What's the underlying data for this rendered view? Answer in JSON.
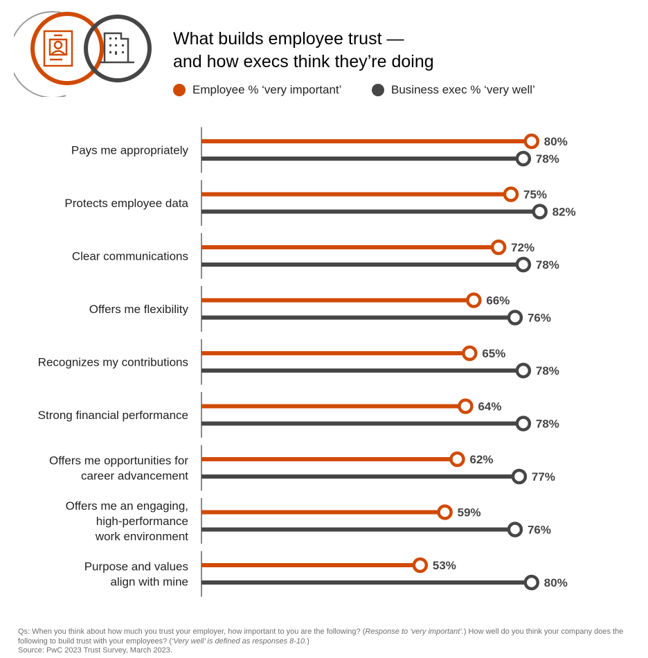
{
  "title_line1": "What builds employee trust —",
  "title_line2": "and how execs think they’re doing",
  "colors": {
    "employee": "#d04a02",
    "exec": "#464646"
  },
  "footer": {
    "q_part1": "Qs: When you think about how much you trust your employer, how important to you are the following? (",
    "q_italic1": "Response to ‘very important’.",
    "q_part2": ") How well do you think your company does the following to build trust with your employees? (",
    "q_italic2": "‘Very well’ is defined as responses 8-10.",
    "q_part3": ")",
    "source": "Source: PwC 2023 Trust Survey, March 2023."
  },
  "chart_data": {
    "type": "bar",
    "orientation": "horizontal",
    "title": "What builds employee trust — and how execs think they’re doing",
    "legend": [
      "Employee % ‘very important’",
      "Business exec % ‘very well’"
    ],
    "legend_position": "top",
    "categories": [
      [
        "Pays me appropriately"
      ],
      [
        "Protects employee data"
      ],
      [
        "Clear communications"
      ],
      [
        "Offers me flexibility"
      ],
      [
        "Recognizes my contributions"
      ],
      [
        "Strong financial performance"
      ],
      [
        "Offers me opportunities for",
        "career advancement"
      ],
      [
        "Offers me an engaging,",
        "high-performance",
        "work environment"
      ],
      [
        "Purpose and values",
        "align with mine"
      ]
    ],
    "series": [
      {
        "name": "Employee % ‘very important’",
        "values": [
          80,
          75,
          72,
          66,
          65,
          64,
          62,
          59,
          53
        ]
      },
      {
        "name": "Business exec % ‘very well’",
        "values": [
          78,
          82,
          78,
          76,
          78,
          78,
          77,
          76,
          80
        ]
      }
    ],
    "value_suffix": "%",
    "xlim": [
      0,
      100
    ]
  }
}
